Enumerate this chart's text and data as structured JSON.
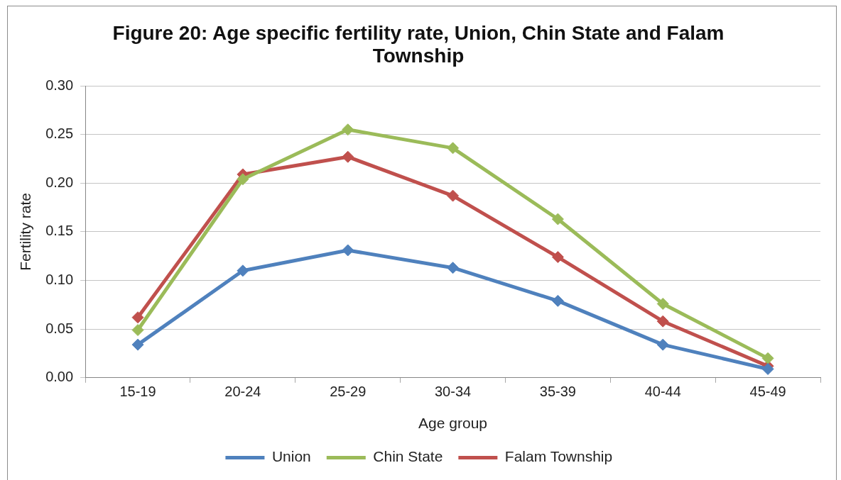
{
  "chart_data": {
    "type": "line",
    "title": "Figure 20: Age specific fertility rate, Union, Chin State and Falam Township",
    "xlabel": "Age group",
    "ylabel": "Fertility rate",
    "categories": [
      "15-19",
      "20-24",
      "25-29",
      "30-34",
      "35-39",
      "40-44",
      "45-49"
    ],
    "series": [
      {
        "name": "Union",
        "color": "#4f81bd",
        "values": [
          0.034,
          0.11,
          0.131,
          0.113,
          0.079,
          0.034,
          0.009
        ]
      },
      {
        "name": "Chin State",
        "color": "#9bbb59",
        "values": [
          0.049,
          0.204,
          0.255,
          0.236,
          0.163,
          0.076,
          0.02
        ]
      },
      {
        "name": "Falam Township",
        "color": "#c0504d",
        "values": [
          0.062,
          0.209,
          0.227,
          0.187,
          0.124,
          0.058,
          0.012
        ]
      }
    ],
    "ylim": [
      0,
      0.3
    ],
    "yticks": [
      {
        "value": 0,
        "label": "0.00"
      },
      {
        "value": 0.05,
        "label": "0.05"
      },
      {
        "value": 0.1,
        "label": "0.10"
      },
      {
        "value": 0.15,
        "label": "0.15"
      },
      {
        "value": 0.2,
        "label": "0.20"
      },
      {
        "value": 0.25,
        "label": "0.25"
      },
      {
        "value": 0.3,
        "label": "0.30"
      }
    ],
    "grid": "y",
    "legend": "bottom",
    "marker": "diamond",
    "line_style": "solid"
  }
}
